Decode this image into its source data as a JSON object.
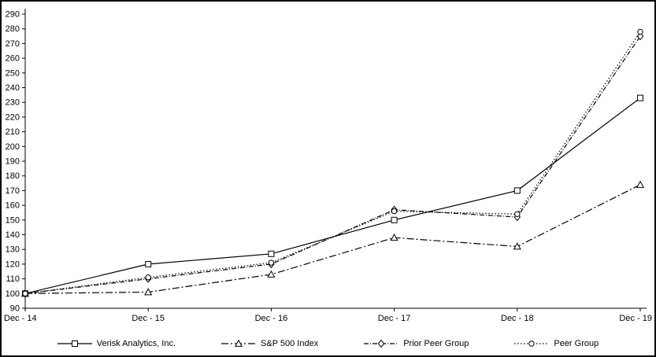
{
  "chart_data": {
    "type": "line",
    "title": "",
    "xlabel": "",
    "ylabel": "",
    "categories": [
      "Dec - 14",
      "Dec - 15",
      "Dec - 16",
      "Dec - 17",
      "Dec - 18",
      "Dec - 19"
    ],
    "ylim": [
      90,
      290
    ],
    "ytick_step": 10,
    "grid": false,
    "legend_position": "bottom",
    "series": [
      {
        "name": "Verisk Analytics, Inc.",
        "marker": "square",
        "dash": "",
        "values": [
          100,
          120,
          127,
          150,
          170,
          233
        ]
      },
      {
        "name": "S&P 500 Index",
        "marker": "triangle",
        "dash": "9,3,2,3",
        "values": [
          100,
          101,
          113,
          138,
          132,
          174
        ]
      },
      {
        "name": "Prior Peer Group",
        "marker": "diamond",
        "dash": "6,2,1,2",
        "values": [
          100,
          110,
          120,
          157,
          152,
          275
        ]
      },
      {
        "name": "Peer Group",
        "marker": "circle",
        "dash": "1.5,2.5",
        "values": [
          100,
          111,
          121,
          156,
          154,
          278
        ]
      }
    ],
    "colors": {
      "line": "#000000",
      "background": "#ffffff",
      "border": "#000000"
    }
  }
}
